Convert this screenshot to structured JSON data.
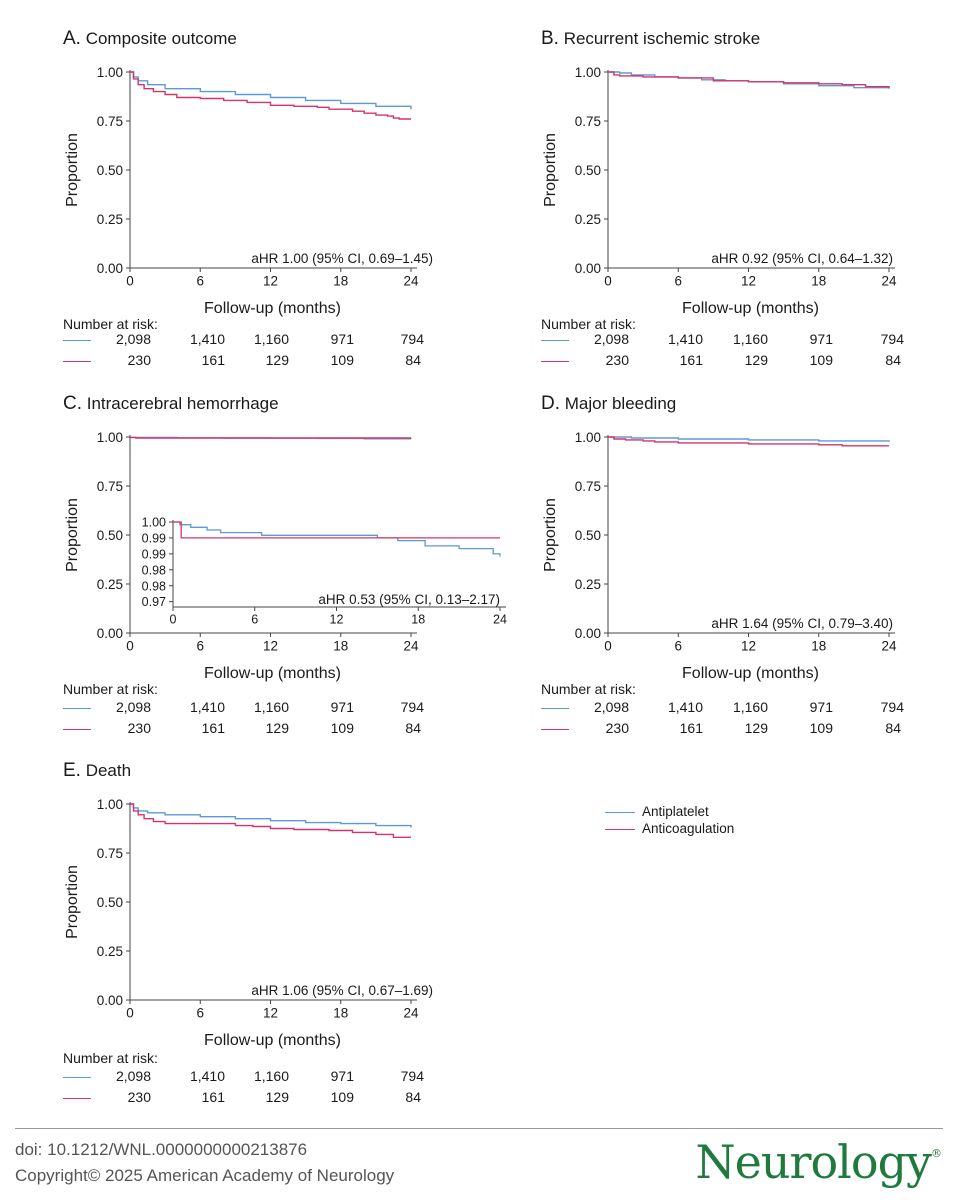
{
  "chart_data": [
    {
      "type": "line",
      "panel_letter": "A.",
      "title": "Composite outcome",
      "xlabel": "Follow-up (months)",
      "ylabel": "Proportion",
      "xlim": [
        0,
        24
      ],
      "ylim": [
        0,
        1
      ],
      "x_ticks": [
        0,
        6,
        12,
        18,
        24
      ],
      "y_ticks": [
        "0.00",
        "0.25",
        "0.50",
        "0.75",
        "1.00"
      ],
      "annotation": "aHR 1.00 (95% CI, 0.69–1.45)",
      "series": [
        {
          "name": "Antiplatelet",
          "color": "#5b9bd5",
          "x": [
            0,
            0.3,
            0.7,
            1.5,
            3,
            6,
            9,
            12,
            15,
            18,
            21,
            24
          ],
          "y": [
            1.0,
            0.975,
            0.955,
            0.935,
            0.915,
            0.9,
            0.885,
            0.87,
            0.855,
            0.84,
            0.825,
            0.81
          ]
        },
        {
          "name": "Anticoagulation",
          "color": "#d6336c",
          "x": [
            0,
            0.3,
            0.7,
            1.2,
            2,
            3,
            4,
            6,
            8,
            10,
            12,
            14,
            16,
            17,
            19,
            20,
            21,
            22,
            22.5,
            23,
            24
          ],
          "y": [
            1.0,
            0.965,
            0.935,
            0.915,
            0.9,
            0.885,
            0.87,
            0.865,
            0.855,
            0.845,
            0.83,
            0.825,
            0.82,
            0.81,
            0.8,
            0.79,
            0.78,
            0.775,
            0.765,
            0.76,
            0.76
          ]
        }
      ],
      "risk_header": "Number at risk:",
      "risk": [
        [
          "2,098",
          "1,410",
          "1,160",
          "971",
          "794"
        ],
        [
          "230",
          "161",
          "129",
          "109",
          "84"
        ]
      ]
    },
    {
      "type": "line",
      "panel_letter": "B.",
      "title": "Recurrent ischemic stroke",
      "xlabel": "Follow-up (months)",
      "ylabel": "Proportion",
      "xlim": [
        0,
        24
      ],
      "ylim": [
        0,
        1
      ],
      "x_ticks": [
        0,
        6,
        12,
        18,
        24
      ],
      "y_ticks": [
        "0.00",
        "0.25",
        "0.50",
        "0.75",
        "1.00"
      ],
      "annotation": "aHR 0.92 (95% CI, 0.64–1.32)",
      "series": [
        {
          "name": "Antiplatelet",
          "color": "#5b9bd5",
          "x": [
            0,
            1,
            2,
            4,
            6,
            8,
            10,
            12,
            15,
            18,
            21,
            24
          ],
          "y": [
            1.0,
            0.995,
            0.985,
            0.975,
            0.97,
            0.96,
            0.955,
            0.95,
            0.94,
            0.93,
            0.92,
            0.915
          ]
        },
        {
          "name": "Anticoagulation",
          "color": "#d6336c",
          "x": [
            0,
            0.5,
            1,
            3,
            6,
            9,
            12,
            15,
            18,
            20,
            22,
            24
          ],
          "y": [
            1.0,
            0.985,
            0.98,
            0.975,
            0.97,
            0.955,
            0.95,
            0.945,
            0.94,
            0.935,
            0.925,
            0.92
          ]
        }
      ],
      "risk_header": "Number at risk:",
      "risk": [
        [
          "2,098",
          "1,410",
          "1,160",
          "971",
          "794"
        ],
        [
          "230",
          "161",
          "129",
          "109",
          "84"
        ]
      ]
    },
    {
      "type": "line",
      "panel_letter": "C.",
      "title": "Intracerebral hemorrhage",
      "xlabel": "Follow-up (months)",
      "ylabel": "Proportion",
      "xlim": [
        0,
        24
      ],
      "ylim": [
        0,
        1
      ],
      "x_ticks": [
        0,
        6,
        12,
        18,
        24
      ],
      "y_ticks": [
        "0.00",
        "0.25",
        "0.50",
        "0.75",
        "1.00"
      ],
      "annotation": "aHR 0.53 (95% CI, 0.13–2.17)",
      "series": [
        {
          "name": "Antiplatelet",
          "color": "#5b9bd5",
          "x": [
            0,
            4,
            8,
            12,
            16,
            20,
            24
          ],
          "y": [
            0.998,
            0.996,
            0.995,
            0.994,
            0.993,
            0.991,
            0.99
          ]
        },
        {
          "name": "Anticoagulation",
          "color": "#d6336c",
          "x": [
            0,
            0.5,
            24
          ],
          "y": [
            0.998,
            0.995,
            0.995
          ]
        }
      ],
      "inset": {
        "xlim": [
          0,
          24
        ],
        "ylim": [
          0.968,
          1.0
        ],
        "x_ticks": [
          0,
          6,
          12,
          18,
          24
        ],
        "y_ticks": [
          "1.00",
          "0.99",
          "0.99",
          "0.98",
          "0.98",
          "0.97"
        ],
        "series": [
          {
            "name": "Antiplatelet",
            "color": "#5b9bd5",
            "x": [
              0,
              0.5,
              1.3,
              2.5,
              3.5,
              5,
              6.5,
              9,
              12,
              15,
              16.5,
              18,
              18.5,
              21,
              23.5,
              24
            ],
            "y": [
              1.0,
              0.999,
              0.998,
              0.997,
              0.996,
              0.996,
              0.995,
              0.995,
              0.995,
              0.994,
              0.993,
              0.993,
              0.991,
              0.99,
              0.988,
              0.987
            ]
          },
          {
            "name": "Anticoagulation",
            "color": "#d6336c",
            "x": [
              0,
              0.6,
              24
            ],
            "y": [
              1.0,
              0.994,
              0.994
            ]
          }
        ]
      },
      "risk_header": "Number at risk:",
      "risk": [
        [
          "2,098",
          "1,410",
          "1,160",
          "971",
          "794"
        ],
        [
          "230",
          "161",
          "129",
          "109",
          "84"
        ]
      ]
    },
    {
      "type": "line",
      "panel_letter": "D.",
      "title": "Major bleeding",
      "xlabel": "Follow-up (months)",
      "ylabel": "Proportion",
      "xlim": [
        0,
        24
      ],
      "ylim": [
        0,
        1
      ],
      "x_ticks": [
        0,
        6,
        12,
        18,
        24
      ],
      "y_ticks": [
        "0.00",
        "0.25",
        "0.50",
        "0.75",
        "1.00"
      ],
      "annotation": "aHR 1.64 (95% CI, 0.79–3.40)",
      "series": [
        {
          "name": "Antiplatelet",
          "color": "#5b9bd5",
          "x": [
            0,
            2,
            6,
            12,
            18,
            24
          ],
          "y": [
            1.0,
            0.995,
            0.99,
            0.985,
            0.98,
            0.975
          ]
        },
        {
          "name": "Anticoagulation",
          "color": "#d6336c",
          "x": [
            0,
            0.5,
            1.5,
            3,
            4,
            6,
            12,
            18,
            20,
            24
          ],
          "y": [
            1.0,
            0.99,
            0.985,
            0.98,
            0.975,
            0.97,
            0.965,
            0.96,
            0.955,
            0.955
          ]
        }
      ],
      "risk_header": "Number at risk:",
      "risk": [
        [
          "2,098",
          "1,410",
          "1,160",
          "971",
          "794"
        ],
        [
          "230",
          "161",
          "129",
          "109",
          "84"
        ]
      ]
    },
    {
      "type": "line",
      "panel_letter": "E.",
      "title": "Death",
      "xlabel": "Follow-up (months)",
      "ylabel": "Proportion",
      "xlim": [
        0,
        24
      ],
      "ylim": [
        0,
        1
      ],
      "x_ticks": [
        0,
        6,
        12,
        18,
        24
      ],
      "y_ticks": [
        "0.00",
        "0.25",
        "0.50",
        "0.75",
        "1.00"
      ],
      "annotation": "aHR 1.06 (95% CI, 0.67–1.69)",
      "series": [
        {
          "name": "Antiplatelet",
          "color": "#5b9bd5",
          "x": [
            0,
            0.3,
            0.7,
            1.5,
            3,
            6,
            9,
            12,
            15,
            18,
            21,
            24
          ],
          "y": [
            1.0,
            0.98,
            0.965,
            0.955,
            0.945,
            0.935,
            0.925,
            0.915,
            0.905,
            0.9,
            0.89,
            0.88
          ]
        },
        {
          "name": "Anticoagulation",
          "color": "#d6336c",
          "x": [
            0,
            0.3,
            0.7,
            1.2,
            2,
            3,
            6,
            9,
            10.5,
            12,
            14,
            17,
            19,
            21,
            22.5,
            24
          ],
          "y": [
            1.0,
            0.965,
            0.945,
            0.925,
            0.91,
            0.9,
            0.9,
            0.89,
            0.885,
            0.875,
            0.87,
            0.865,
            0.855,
            0.845,
            0.83,
            0.83
          ]
        }
      ],
      "risk_header": "Number at risk:",
      "risk": [
        [
          "2,098",
          "1,410",
          "1,160",
          "971",
          "794"
        ],
        [
          "230",
          "161",
          "129",
          "109",
          "84"
        ]
      ]
    }
  ],
  "legend": {
    "items": [
      {
        "label": "Antiplatelet",
        "color": "#5b9bd5"
      },
      {
        "label": "Anticoagulation",
        "color": "#d6336c"
      }
    ]
  },
  "footer": {
    "doi": "doi: 10.1212/WNL.0000000000213876",
    "copyright": "Copyright© 2025 American Academy of Neurology",
    "logo": "Neurology",
    "logo_mark": "®"
  }
}
